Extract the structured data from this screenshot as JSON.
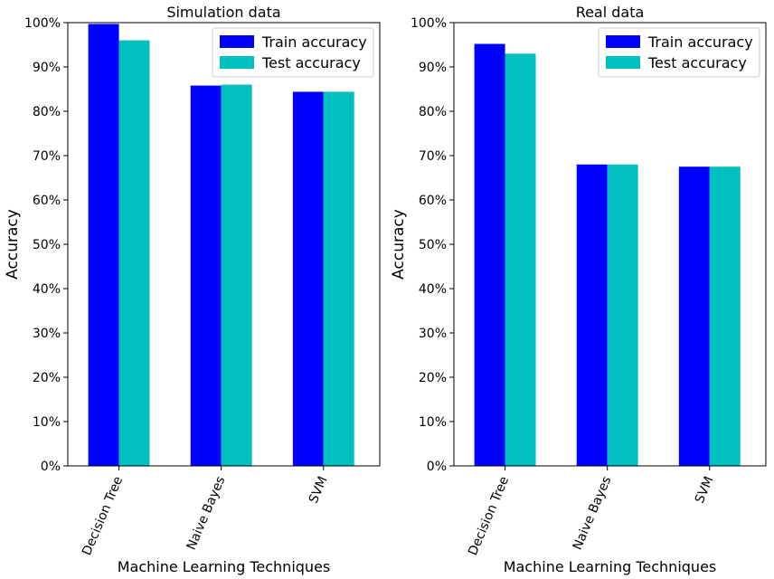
{
  "colors": {
    "train": "#0000ff",
    "test": "#00bfbf"
  },
  "chart_data": [
    {
      "type": "bar",
      "title": "Simulation data",
      "xlabel": "Machine Learning Techniques",
      "ylabel": "Accuracy",
      "categories": [
        "Decision Tree",
        "Naive Bayes",
        "SVM"
      ],
      "ylim": [
        0,
        100
      ],
      "yticks": [
        "0%",
        "10%",
        "20%",
        "30%",
        "40%",
        "50%",
        "60%",
        "70%",
        "80%",
        "90%",
        "100%"
      ],
      "legend_position": "top-right",
      "series": [
        {
          "name": "Train accuracy",
          "values": [
            99.7,
            85.8,
            84.4
          ]
        },
        {
          "name": "Test accuracy",
          "values": [
            96.0,
            86.0,
            84.4
          ]
        }
      ]
    },
    {
      "type": "bar",
      "title": "Real data",
      "xlabel": "Machine Learning Techniques",
      "ylabel": "Accuracy",
      "categories": [
        "Decision Tree",
        "Naive Bayes",
        "SVM"
      ],
      "ylim": [
        0,
        100
      ],
      "yticks": [
        "0%",
        "10%",
        "20%",
        "30%",
        "40%",
        "50%",
        "60%",
        "70%",
        "80%",
        "90%",
        "100%"
      ],
      "legend_position": "top-right",
      "series": [
        {
          "name": "Train accuracy",
          "values": [
            95.2,
            68.0,
            67.5
          ]
        },
        {
          "name": "Test accuracy",
          "values": [
            93.0,
            68.0,
            67.5
          ]
        }
      ]
    }
  ]
}
